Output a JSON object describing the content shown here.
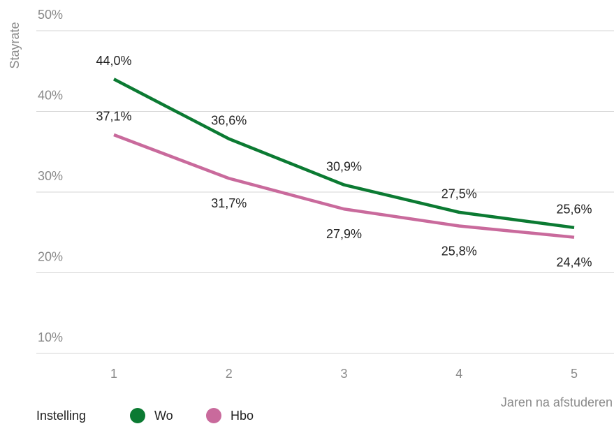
{
  "chart_data": {
    "type": "line",
    "ylabel": "Stayrate",
    "xlabel": "Jaren na afstuderen",
    "legend_title": "Instelling",
    "categories": [
      "1",
      "2",
      "3",
      "4",
      "5"
    ],
    "series": [
      {
        "name": "Wo",
        "color": "#0b7a32",
        "values": [
          44.0,
          36.6,
          30.9,
          27.5,
          25.6
        ],
        "value_labels": [
          "44,0%",
          "36,6%",
          "30,9%",
          "27,5%",
          "25,6%"
        ]
      },
      {
        "name": "Hbo",
        "color": "#c96a9c",
        "values": [
          37.1,
          31.7,
          27.9,
          25.8,
          24.4
        ],
        "value_labels": [
          "37,1%",
          "31,7%",
          "27,9%",
          "25,8%",
          "24,4%"
        ]
      }
    ],
    "ylim": [
      10,
      50
    ],
    "yticks": [
      {
        "value": 10,
        "label": "10%"
      },
      {
        "value": 20,
        "label": "20%"
      },
      {
        "value": 30,
        "label": "30%"
      },
      {
        "value": 40,
        "label": "40%"
      },
      {
        "value": 50,
        "label": "50%"
      }
    ],
    "grid": true,
    "legend": "bottom-left"
  }
}
